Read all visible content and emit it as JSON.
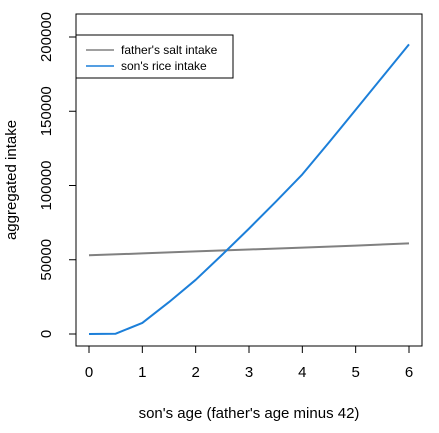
{
  "chart_data": {
    "type": "line",
    "title": "",
    "xlabel": "son's age (father's age minus 42)",
    "ylabel": "aggregated intake",
    "xlim": [
      0,
      6
    ],
    "ylim": [
      0,
      200000
    ],
    "x_ticks": [
      0,
      1,
      2,
      3,
      4,
      5,
      6
    ],
    "y_ticks": [
      0,
      50000,
      100000,
      150000,
      200000
    ],
    "grid": false,
    "legend_position": "top-left",
    "series": [
      {
        "name": "father's salt intake",
        "color": "#808080",
        "x": [
          0,
          1,
          2,
          3,
          4,
          5,
          6
        ],
        "y": [
          53000,
          54300,
          55600,
          56900,
          58200,
          59500,
          61000
        ]
      },
      {
        "name": "son's rice intake",
        "color": "#1c7fd9",
        "x": [
          0,
          0.5,
          1,
          1.5,
          2,
          2.5,
          3,
          3.5,
          4,
          4.5,
          5,
          5.5,
          6
        ],
        "y": [
          0,
          200,
          7500,
          21500,
          36500,
          53500,
          71000,
          89000,
          107500,
          129000,
          151000,
          173000,
          195000
        ]
      }
    ]
  }
}
